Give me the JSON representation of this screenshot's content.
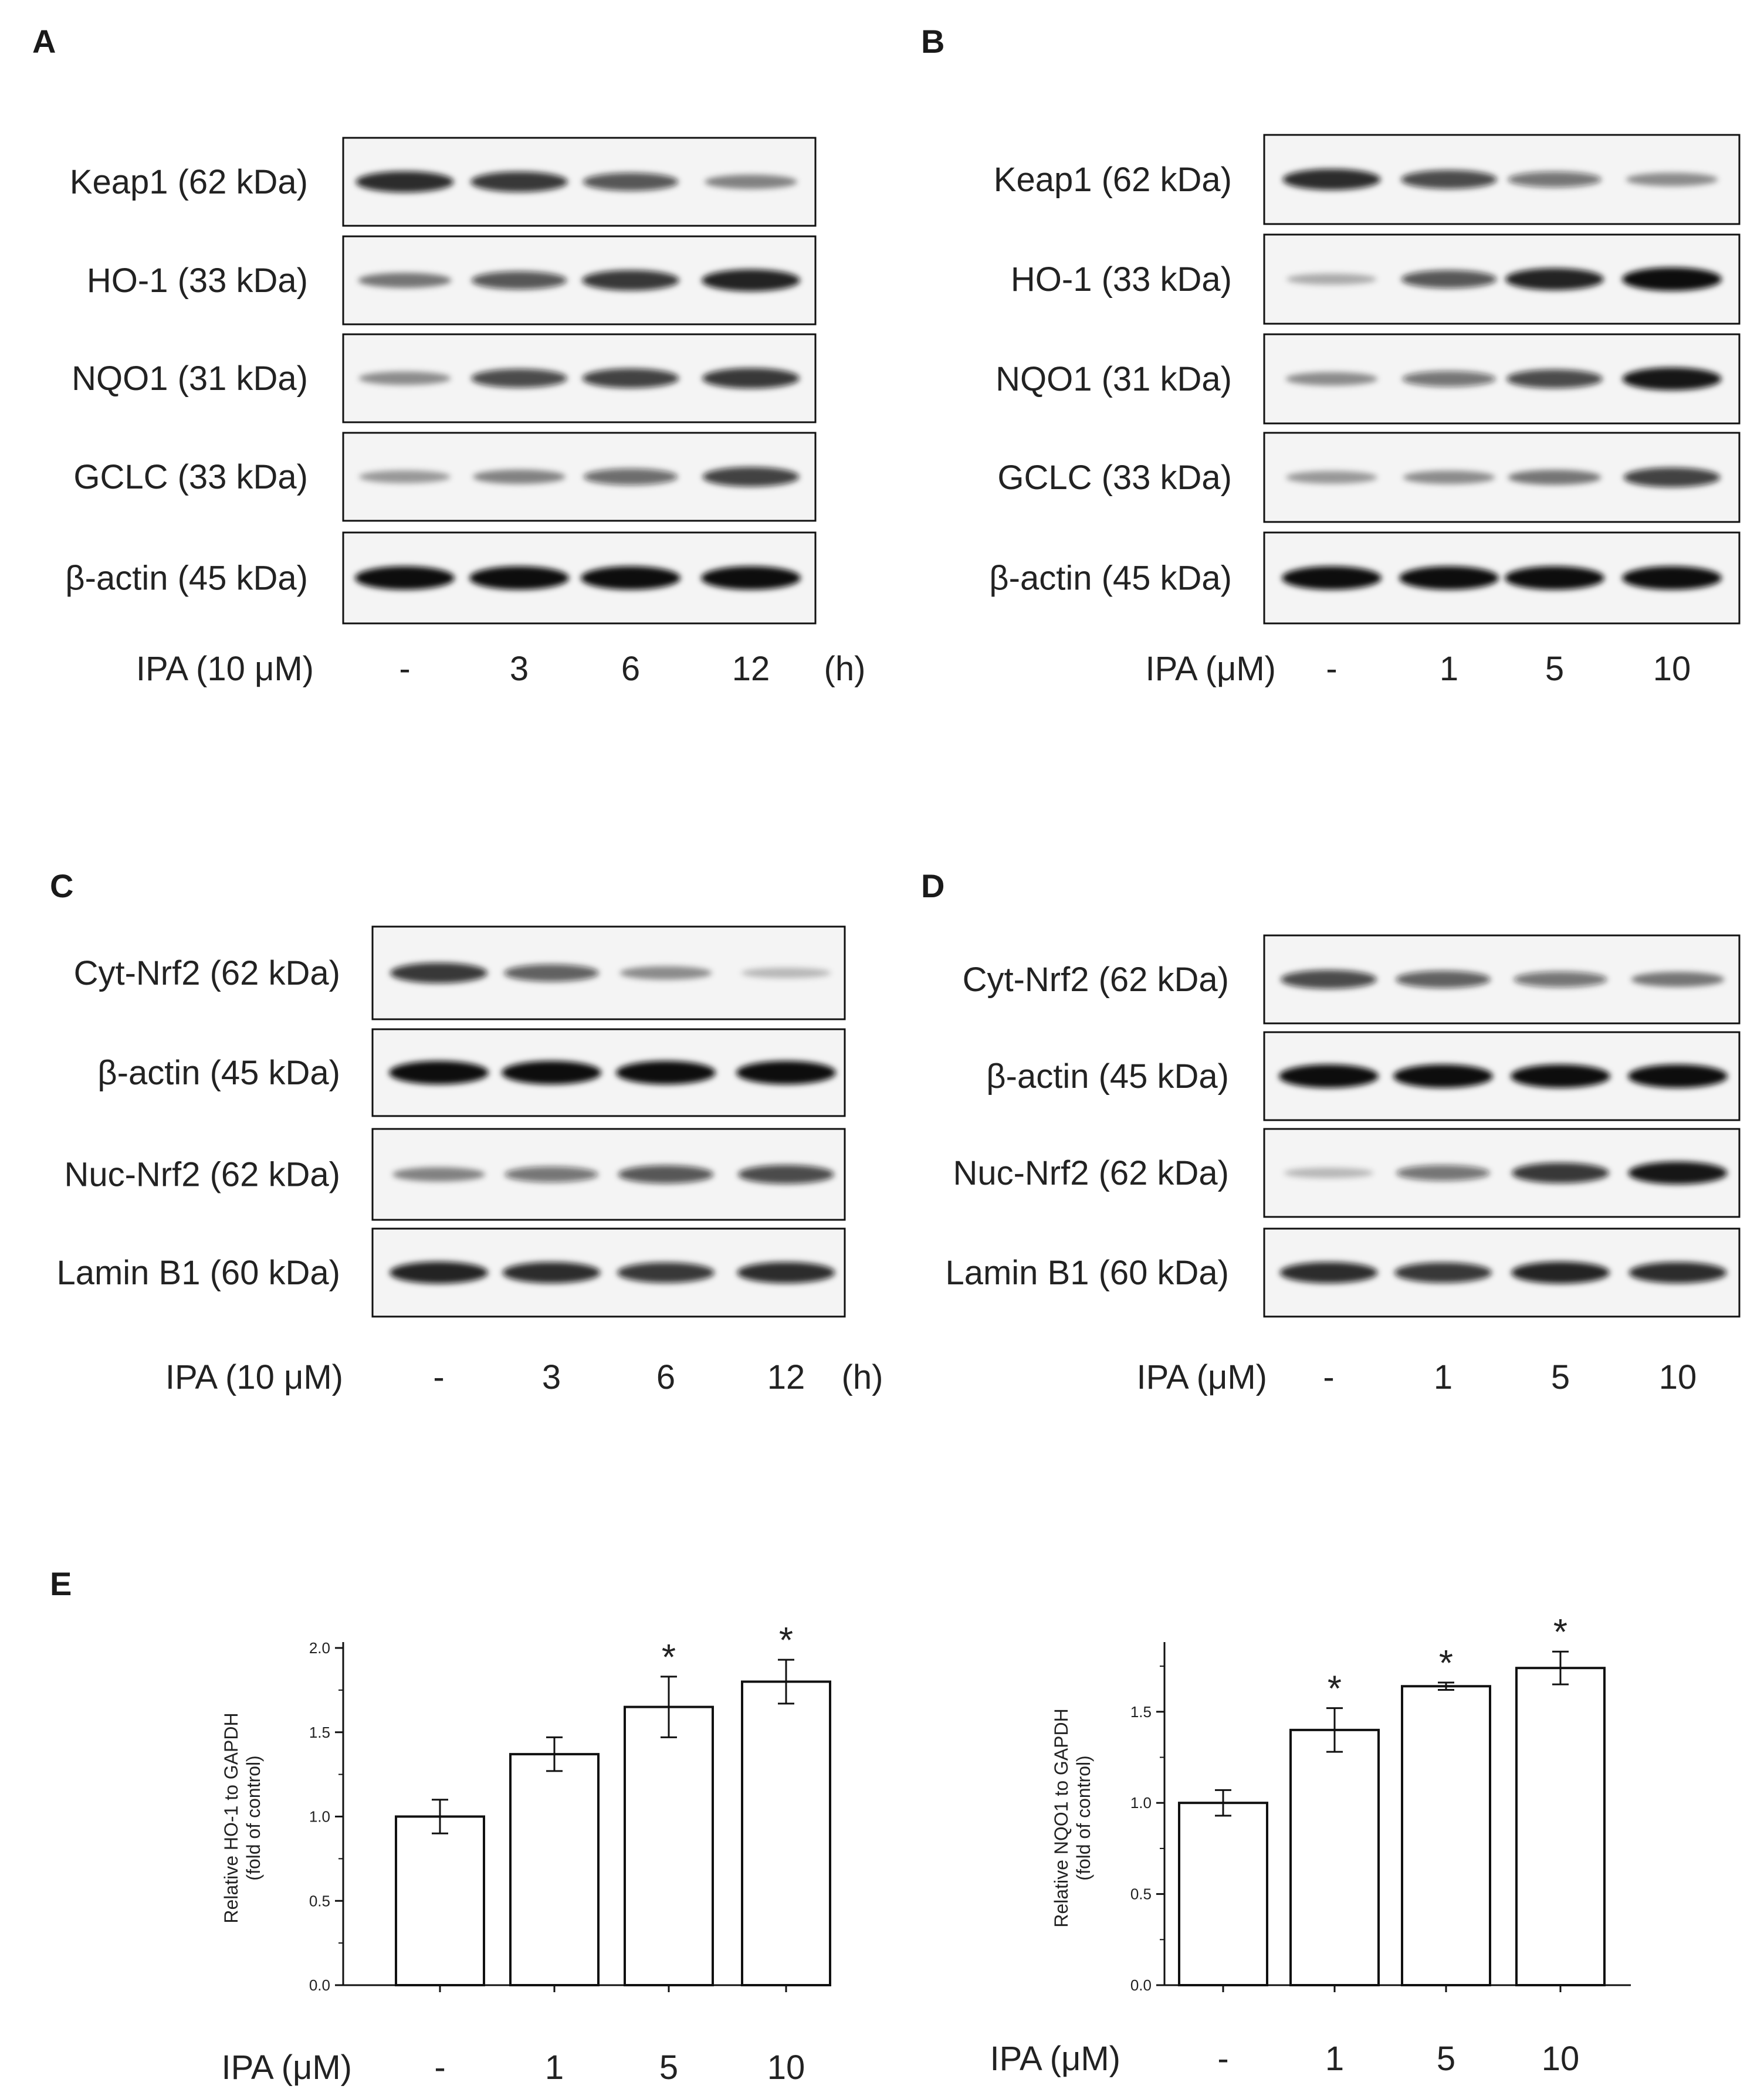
{
  "panels": [
    {
      "letter": "A",
      "rows": [
        {
          "label": "Keap1 (62 kDa)",
          "bands": [
            0.85,
            0.8,
            0.65,
            0.4
          ]
        },
        {
          "label": "HO-1 (33 kDa)",
          "bands": [
            0.45,
            0.65,
            0.8,
            0.9
          ]
        },
        {
          "label": "NQO1 (31 kDa)",
          "bands": [
            0.35,
            0.7,
            0.75,
            0.8
          ]
        },
        {
          "label": "GCLC (33 kDa)",
          "bands": [
            0.3,
            0.4,
            0.55,
            0.75
          ]
        },
        {
          "label": "β-actin (45 kDa)",
          "bands": [
            1,
            1,
            1,
            1
          ]
        }
      ],
      "treatment_label": "IPA (10 μM)",
      "lanes": [
        "-",
        "3",
        "6",
        "12"
      ],
      "unit": "(h)"
    },
    {
      "letter": "B",
      "rows": [
        {
          "label": "Keap1 (62 kDa)",
          "bands": [
            0.85,
            0.7,
            0.5,
            0.35
          ]
        },
        {
          "label": "HO-1 (33 kDa)",
          "bands": [
            0.2,
            0.65,
            0.9,
            1
          ]
        },
        {
          "label": "NQO1 (31 kDa)",
          "bands": [
            0.35,
            0.5,
            0.7,
            0.95
          ]
        },
        {
          "label": "GCLC (33 kDa)",
          "bands": [
            0.3,
            0.35,
            0.45,
            0.75
          ]
        },
        {
          "label": "β-actin (45 kDa)",
          "bands": [
            1,
            1,
            1,
            1
          ]
        }
      ],
      "treatment_label": "IPA (μM)",
      "lanes": [
        "-",
        "1",
        "5",
        "10"
      ],
      "unit": ""
    },
    {
      "letter": "C",
      "rows": [
        {
          "label": "Cyt-Nrf2 (62 kDa)",
          "bands": [
            0.8,
            0.6,
            0.35,
            0.15
          ]
        },
        {
          "label": "β-actin (45 kDa)",
          "bands": [
            1,
            1,
            1,
            1
          ]
        },
        {
          "label": "Nuc-Nrf2 (62 kDa)",
          "bands": [
            0.4,
            0.5,
            0.65,
            0.7
          ]
        },
        {
          "label": "Lamin B1 (60 kDa)",
          "bands": [
            0.9,
            0.85,
            0.8,
            0.85
          ]
        }
      ],
      "treatment_label": "IPA (10 μM)",
      "lanes": [
        "-",
        "3",
        "6",
        "12"
      ],
      "unit": "(h)"
    },
    {
      "letter": "D",
      "rows": [
        {
          "label": "Cyt-Nrf2 (62 kDa)",
          "bands": [
            0.7,
            0.6,
            0.5,
            0.45
          ]
        },
        {
          "label": "β-actin (45 kDa)",
          "bands": [
            1,
            1,
            1,
            1
          ]
        },
        {
          "label": "Nuc-Nrf2 (62 kDa)",
          "bands": [
            0.15,
            0.5,
            0.8,
            0.95
          ]
        },
        {
          "label": "Lamin B1 (60 kDa)",
          "bands": [
            0.85,
            0.8,
            0.9,
            0.85
          ]
        }
      ],
      "treatment_label": "IPA (μM)",
      "lanes": [
        "-",
        "1",
        "5",
        "10"
      ],
      "unit": ""
    }
  ],
  "panel_e_letter": "E",
  "chart_data": [
    {
      "type": "bar",
      "title": "",
      "ylabel": "Relative HO-1 to GAPDH (fold of control)",
      "xlabel": "IPA (μM)",
      "categories": [
        "-",
        "1",
        "5",
        "10"
      ],
      "values": [
        1.0,
        1.37,
        1.65,
        1.8
      ],
      "errors": [
        0.1,
        0.1,
        0.18,
        0.13
      ],
      "significance": [
        "",
        "",
        "*",
        "*"
      ],
      "ylim": [
        0,
        2.0
      ],
      "yticks": [
        "0.0",
        "0.5",
        "1.0",
        "1.5",
        "2.0"
      ],
      "grid": false
    },
    {
      "type": "bar",
      "title": "",
      "ylabel": "Relative NQO1 to GAPDH (fold of control)",
      "xlabel": "IPA (μM)",
      "categories": [
        "-",
        "1",
        "5",
        "10"
      ],
      "values": [
        1.0,
        1.4,
        1.64,
        1.74
      ],
      "errors": [
        0.07,
        0.12,
        0.02,
        0.09
      ],
      "significance": [
        "",
        "*",
        "*",
        "*"
      ],
      "ylim": [
        0,
        1.85
      ],
      "yticks": [
        "0.0",
        "0.5",
        "1.0",
        "1.5"
      ],
      "grid": false
    }
  ]
}
